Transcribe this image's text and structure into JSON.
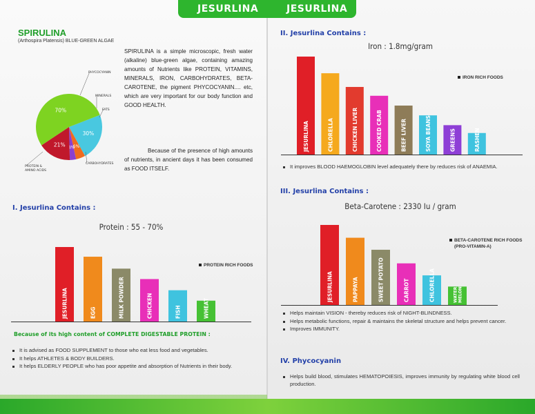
{
  "banner": {
    "title_left": "JESURLINA",
    "title_right": "JESURLINA"
  },
  "spirulina": {
    "title": "SPIRULINA",
    "subtitle": "(Arthospira Platensis) BLUE-GREEN ALGAE",
    "text": "SPIRULINA is a simple microscopic, fresh water (alkaline) blue-green algae, containing amazing amounts of Nutrients like PROTEIN, VITAMINS, MINERALS, IRON, CARBOHYDRATES, BETA-CAROTENE, the pigment PHYCOCYANIN.... etc, which are very important for our body function and GOOD HEALTH.",
    "text2": "Because of the presence of high amounts of nutrients, in ancient days it has been consumed as FOOD ITSELF.",
    "pie": {
      "slices": [
        {
          "label": "PROTEIN",
          "pct_text": "70%",
          "value": 70,
          "color": "#7ed321"
        },
        {
          "label": "CARBOHYDRATES",
          "pct_text": "21%",
          "value": 21,
          "color": "#c0182b"
        },
        {
          "label": "FATS",
          "pct_text": "4%",
          "value": 4,
          "color": "#8b3fd0"
        },
        {
          "label": "MINERALS",
          "pct_text": "6%",
          "value": 6,
          "color": "#ef6a1f"
        },
        {
          "label": "PHYCOCYANIN",
          "pct_text": "30%",
          "value": 30,
          "color": "#49c8e0"
        }
      ],
      "outer_labels": [
        "PHYCOCYANIN",
        "MINERALS",
        "FATS",
        "CARBOHYDRATES",
        "PROTEIN & AMINO ACIDS"
      ]
    }
  },
  "section1": {
    "heading": "I. Jesurlina Contains :",
    "chart_title": "Protein : 55 - 70%",
    "legend": "PROTEIN RICH FOODS",
    "note": "Because of its high content of  COMPLETE DIGESTABLE PROTEIN :",
    "bullets": [
      "It is advised as FOOD SUPPLEMENT to those who eat less food and vegetables.",
      "It helps ATHLETES & BODY BUILDERS.",
      "It helps ELDERLY PEOPLE who has poor appetite and absorption of Nutrients in their body."
    ]
  },
  "section2": {
    "heading": "II. Jesurlina Contains :",
    "chart_title": "Iron : 1.8mg/gram",
    "legend": "IRON RICH FOODS",
    "bullets": [
      "It improves BLOOD HAEMOGLOBIN level adequately there by reduces risk of ANAEMIA."
    ]
  },
  "section3": {
    "heading": "III. Jesurlina Contains :",
    "chart_title": "Beta-Carotene : 2330 Iu / gram",
    "legend": "BETA-CAROTENE RICH FOODS",
    "legend2": "(PRO-VITAMIN-A)",
    "bullets": [
      "Helps maintain VISION - thereby reduces risk of NIGHT-BLINDNESS.",
      "Helps metabolic functions, repair & maintains the skeletal structure and helps prevent cancer.",
      "Improves IMMUNITY."
    ]
  },
  "section4": {
    "heading": "IV.  Phycocyanin",
    "bullets": [
      "Helps build blood, stimulates HEMATOPOIESIS, improves immunity by regulating white blood cell production."
    ]
  },
  "chart_data": [
    {
      "type": "bar",
      "title": "Protein : 55 - 70%",
      "categories": [
        "JESURLINA",
        "EGG",
        "MILK POWDER",
        "CHICKEN",
        "FISH",
        "WHEAT"
      ],
      "values": [
        100,
        87,
        71,
        57,
        42,
        28
      ],
      "colors": [
        "#e01f27",
        "#f08a1c",
        "#8b8a68",
        "#e82fb8",
        "#3fc3df",
        "#46c134"
      ],
      "legend": [
        "PROTEIN RICH FOODS"
      ],
      "xlabel": "",
      "ylabel": "",
      "ylim": [
        0,
        100
      ]
    },
    {
      "type": "bar",
      "title": "Iron : 1.8mg/gram",
      "categories": [
        "JESURLINA",
        "CHLORELLA",
        "CHICKEN LIVER",
        "COOKED CRAB",
        "BEEF LIVER",
        "SOYA BEANS",
        "GREENS",
        "RASHEN"
      ],
      "values": [
        100,
        83,
        69,
        60,
        50,
        40,
        30,
        22
      ],
      "colors": [
        "#e01f27",
        "#f5a91d",
        "#e23b2e",
        "#e82fb8",
        "#8e7c58",
        "#3fc3df",
        "#8e3fd6",
        "#3fc3df"
      ],
      "legend": [
        "IRON RICH FOODS"
      ],
      "xlabel": "",
      "ylabel": "",
      "ylim": [
        0,
        100
      ]
    },
    {
      "type": "bar",
      "title": "Beta-Carotene : 2330 Iu / gram",
      "categories": [
        "JESURLINA",
        "PAPPAYA",
        "SWEET POTATO",
        "CARROT",
        "CHLORELLA",
        "WATER MELON"
      ],
      "values": [
        100,
        84,
        69,
        52,
        37,
        23
      ],
      "colors": [
        "#e01f27",
        "#f08a1c",
        "#8b8a68",
        "#e82fb8",
        "#3fc3df",
        "#46c134"
      ],
      "legend": [
        "BETA-CAROTENE RICH FOODS (PRO-VITAMIN-A)"
      ],
      "xlabel": "",
      "ylabel": "",
      "ylim": [
        0,
        100
      ]
    }
  ]
}
